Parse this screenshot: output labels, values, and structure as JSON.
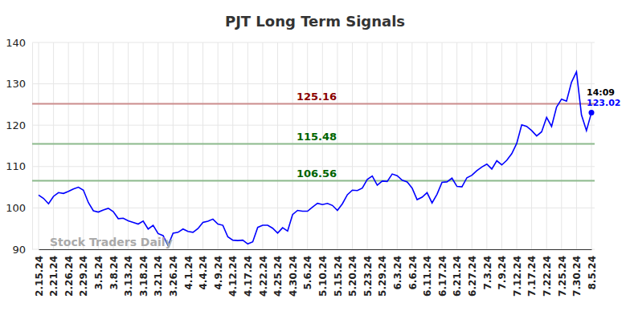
{
  "chart_data": {
    "type": "line",
    "title": "PJT Long Term Signals",
    "watermark": "Stock Traders Daily",
    "color": "#0000ff",
    "categories": [
      "2.15.24",
      null,
      null,
      "2.21.24",
      null,
      null,
      "2.26.24",
      null,
      null,
      "2.29.24",
      null,
      null,
      "3.5.24",
      null,
      null,
      "3.8.24",
      null,
      null,
      "3.13.24",
      null,
      null,
      "3.18.24",
      null,
      null,
      "3.21.24",
      null,
      null,
      "3.26.24",
      null,
      null,
      "4.1.24",
      null,
      null,
      "4.4.24",
      null,
      null,
      "4.9.24",
      null,
      null,
      "4.12.24",
      null,
      null,
      "4.17.24",
      null,
      null,
      "4.22.24",
      null,
      null,
      "4.25.24",
      null,
      null,
      "4.30.24",
      null,
      null,
      "5.6.24",
      null,
      null,
      "5.10.24",
      null,
      null,
      "5.15.24",
      null,
      null,
      "5.20.24",
      null,
      null,
      "5.23.24",
      null,
      null,
      "5.29.24",
      null,
      null,
      "6.3.24",
      null,
      null,
      "6.6.24",
      null,
      null,
      "6.11.24",
      null,
      null,
      "6.17.24",
      null,
      null,
      "6.21.24",
      null,
      null,
      "6.27.24",
      null,
      null,
      "7.3.24",
      null,
      null,
      "7.9.24",
      null,
      null,
      "7.12.24",
      null,
      null,
      "7.17.24",
      null,
      null,
      "7.22.24",
      null,
      null,
      "7.25.24",
      null,
      null,
      "7.30.24",
      null,
      null,
      "8.5.24"
    ],
    "values": [
      103.1,
      102.3,
      101.0,
      102.8,
      103.7,
      103.5,
      104.0,
      104.6,
      105.0,
      104.3,
      101.3,
      99.3,
      99.0,
      99.5,
      99.9,
      99.1,
      97.4,
      97.5,
      96.9,
      96.5,
      96.1,
      96.8,
      94.9,
      95.8,
      93.8,
      93.3,
      90.9,
      93.9,
      94.1,
      94.9,
      94.3,
      94.1,
      95.0,
      96.5,
      96.8,
      97.3,
      96.1,
      95.8,
      93.0,
      92.2,
      92.1,
      92.2,
      91.3,
      91.8,
      95.3,
      95.8,
      95.8,
      95.1,
      93.9,
      95.2,
      94.4,
      98.4,
      99.4,
      99.2,
      99.2,
      100.2,
      101.1,
      100.8,
      101.1,
      100.6,
      99.4,
      101.0,
      103.2,
      104.3,
      104.2,
      104.8,
      106.9,
      107.7,
      105.5,
      106.5,
      106.4,
      108.2,
      107.8,
      106.7,
      106.3,
      104.8,
      102.0,
      102.6,
      103.7,
      101.2,
      103.3,
      106.2,
      106.3,
      107.2,
      105.2,
      105.1,
      107.3,
      107.9,
      109.0,
      109.9,
      110.6,
      109.4,
      111.4,
      110.4,
      111.5,
      113.1,
      115.6,
      120.1,
      119.7,
      118.7,
      117.4,
      118.4,
      121.9,
      119.7,
      124.4,
      126.3,
      125.8,
      130.4,
      132.9,
      122.5,
      118.7,
      123.02
    ],
    "levels": [
      {
        "value": 125.16,
        "color": "#8b0000"
      },
      {
        "value": 115.48,
        "color": "#006400"
      },
      {
        "value": 106.56,
        "color": "#006400"
      }
    ],
    "last_label": {
      "time": "14:09",
      "value": 123.02
    },
    "ylim": [
      90,
      140
    ],
    "yticks": [
      90,
      100,
      110,
      120,
      130,
      140
    ],
    "grid": true
  }
}
